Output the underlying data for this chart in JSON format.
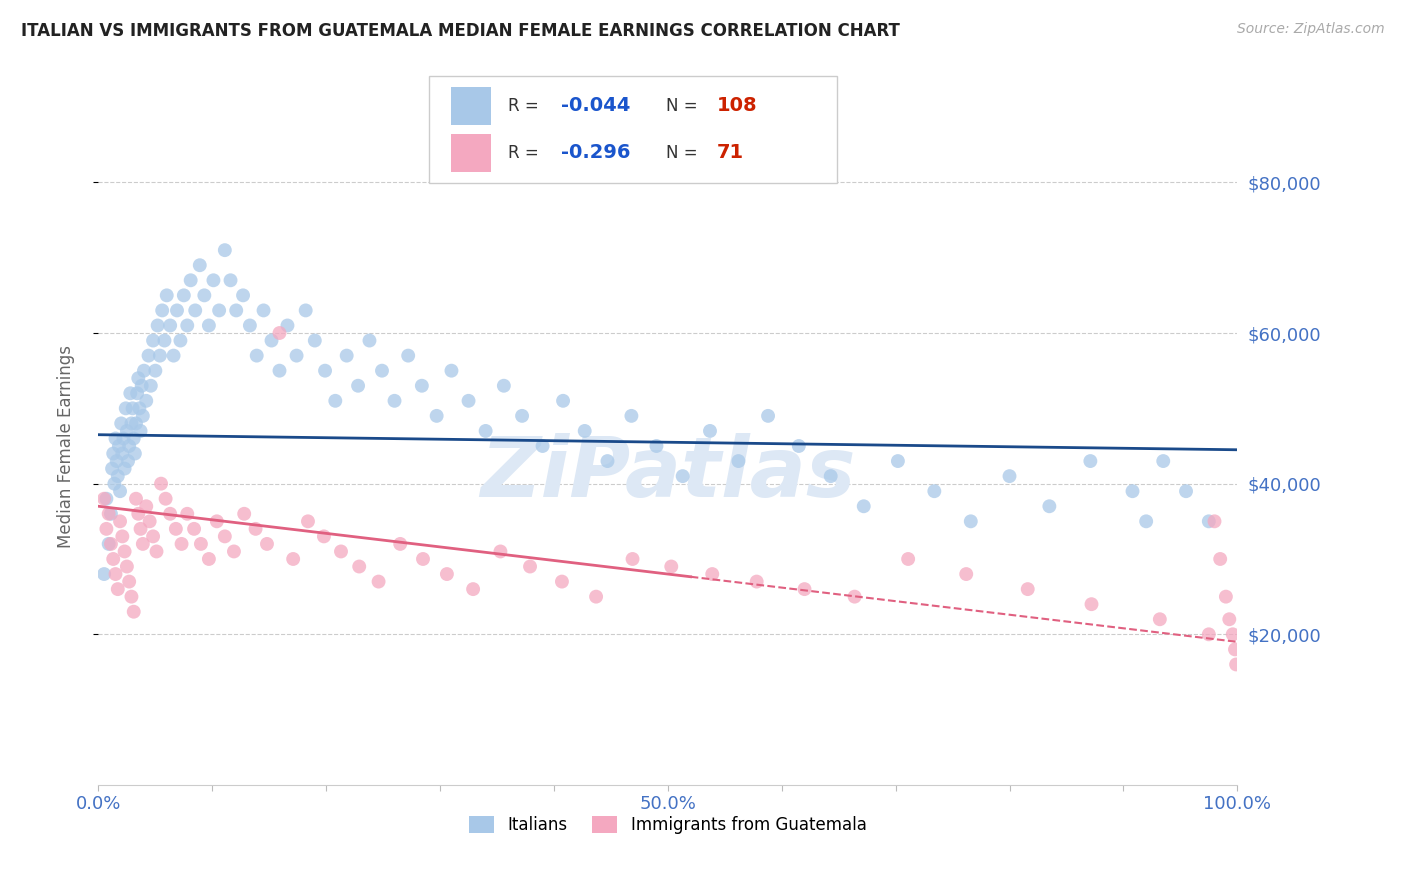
{
  "title": "ITALIAN VS IMMIGRANTS FROM GUATEMALA MEDIAN FEMALE EARNINGS CORRELATION CHART",
  "source": "Source: ZipAtlas.com",
  "ylabel": "Median Female Earnings",
  "x_min": 0.0,
  "x_max": 1.0,
  "y_min": 0,
  "y_max": 90000,
  "y_ticks": [
    20000,
    40000,
    60000,
    80000
  ],
  "y_tick_labels": [
    "$20,000",
    "$40,000",
    "$60,000",
    "$80,000"
  ],
  "x_tick_positions": [
    0.0,
    0.1,
    0.2,
    0.3,
    0.4,
    0.5,
    0.6,
    0.7,
    0.8,
    0.9,
    1.0
  ],
  "x_tick_labels": [
    "0.0%",
    "",
    "",
    "",
    "",
    "50.0%",
    "",
    "",
    "",
    "",
    "100.0%"
  ],
  "legend_labels": [
    "Italians",
    "Immigrants from Guatemala"
  ],
  "blue_R": -0.044,
  "blue_N": 108,
  "pink_R": -0.296,
  "pink_N": 71,
  "blue_color": "#a8c8e8",
  "pink_color": "#f4a8c0",
  "blue_line_color": "#1a4a8a",
  "pink_line_color": "#e06080",
  "title_color": "#222222",
  "tick_label_color": "#4472c4",
  "ylabel_color": "#666666",
  "legend_R_color": "#1a55cc",
  "legend_N_color": "#cc2200",
  "watermark": "ZiPatlas",
  "watermark_color": "#dde8f5",
  "blue_line_intercept": 46500,
  "blue_line_slope": -2000,
  "pink_line_intercept": 37000,
  "pink_line_slope": -18000,
  "pink_line_solid_end": 0.52,
  "blue_x": [
    0.005,
    0.007,
    0.009,
    0.011,
    0.012,
    0.013,
    0.014,
    0.015,
    0.016,
    0.017,
    0.018,
    0.019,
    0.02,
    0.021,
    0.022,
    0.023,
    0.024,
    0.025,
    0.026,
    0.027,
    0.028,
    0.029,
    0.03,
    0.031,
    0.032,
    0.033,
    0.034,
    0.035,
    0.036,
    0.037,
    0.038,
    0.039,
    0.04,
    0.042,
    0.044,
    0.046,
    0.048,
    0.05,
    0.052,
    0.054,
    0.056,
    0.058,
    0.06,
    0.063,
    0.066,
    0.069,
    0.072,
    0.075,
    0.078,
    0.081,
    0.085,
    0.089,
    0.093,
    0.097,
    0.101,
    0.106,
    0.111,
    0.116,
    0.121,
    0.127,
    0.133,
    0.139,
    0.145,
    0.152,
    0.159,
    0.166,
    0.174,
    0.182,
    0.19,
    0.199,
    0.208,
    0.218,
    0.228,
    0.238,
    0.249,
    0.26,
    0.272,
    0.284,
    0.297,
    0.31,
    0.325,
    0.34,
    0.356,
    0.372,
    0.39,
    0.408,
    0.427,
    0.447,
    0.468,
    0.49,
    0.513,
    0.537,
    0.562,
    0.588,
    0.615,
    0.643,
    0.672,
    0.702,
    0.734,
    0.766,
    0.8,
    0.835,
    0.871,
    0.908,
    0.92,
    0.935,
    0.955,
    0.975
  ],
  "blue_y": [
    28000,
    38000,
    32000,
    36000,
    42000,
    44000,
    40000,
    46000,
    43000,
    41000,
    45000,
    39000,
    48000,
    44000,
    46000,
    42000,
    50000,
    47000,
    43000,
    45000,
    52000,
    48000,
    50000,
    46000,
    44000,
    48000,
    52000,
    54000,
    50000,
    47000,
    53000,
    49000,
    55000,
    51000,
    57000,
    53000,
    59000,
    55000,
    61000,
    57000,
    63000,
    59000,
    65000,
    61000,
    57000,
    63000,
    59000,
    65000,
    61000,
    67000,
    63000,
    69000,
    65000,
    61000,
    67000,
    63000,
    71000,
    67000,
    63000,
    65000,
    61000,
    57000,
    63000,
    59000,
    55000,
    61000,
    57000,
    63000,
    59000,
    55000,
    51000,
    57000,
    53000,
    59000,
    55000,
    51000,
    57000,
    53000,
    49000,
    55000,
    51000,
    47000,
    53000,
    49000,
    45000,
    51000,
    47000,
    43000,
    49000,
    45000,
    41000,
    47000,
    43000,
    49000,
    45000,
    41000,
    37000,
    43000,
    39000,
    35000,
    41000,
    37000,
    43000,
    39000,
    35000,
    43000,
    39000,
    35000
  ],
  "pink_x": [
    0.005,
    0.007,
    0.009,
    0.011,
    0.013,
    0.015,
    0.017,
    0.019,
    0.021,
    0.023,
    0.025,
    0.027,
    0.029,
    0.031,
    0.033,
    0.035,
    0.037,
    0.039,
    0.042,
    0.045,
    0.048,
    0.051,
    0.055,
    0.059,
    0.063,
    0.068,
    0.073,
    0.078,
    0.084,
    0.09,
    0.097,
    0.104,
    0.111,
    0.119,
    0.128,
    0.138,
    0.148,
    0.159,
    0.171,
    0.184,
    0.198,
    0.213,
    0.229,
    0.246,
    0.265,
    0.285,
    0.306,
    0.329,
    0.353,
    0.379,
    0.407,
    0.437,
    0.469,
    0.503,
    0.539,
    0.578,
    0.62,
    0.664,
    0.711,
    0.762,
    0.816,
    0.872,
    0.932,
    0.975,
    0.98,
    0.985,
    0.99,
    0.993,
    0.996,
    0.998,
    0.999
  ],
  "pink_y": [
    38000,
    34000,
    36000,
    32000,
    30000,
    28000,
    26000,
    35000,
    33000,
    31000,
    29000,
    27000,
    25000,
    23000,
    38000,
    36000,
    34000,
    32000,
    37000,
    35000,
    33000,
    31000,
    40000,
    38000,
    36000,
    34000,
    32000,
    36000,
    34000,
    32000,
    30000,
    35000,
    33000,
    31000,
    36000,
    34000,
    32000,
    60000,
    30000,
    35000,
    33000,
    31000,
    29000,
    27000,
    32000,
    30000,
    28000,
    26000,
    31000,
    29000,
    27000,
    25000,
    30000,
    29000,
    28000,
    27000,
    26000,
    25000,
    30000,
    28000,
    26000,
    24000,
    22000,
    20000,
    35000,
    30000,
    25000,
    22000,
    20000,
    18000,
    16000
  ]
}
